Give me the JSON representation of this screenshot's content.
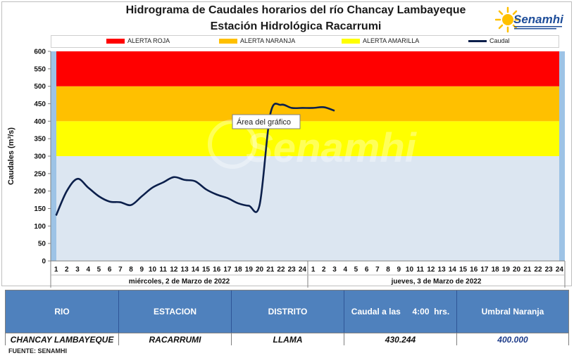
{
  "header": {
    "title_line1": "Hidrograma de Caudales horarios del río Chancay Lambayeque",
    "title_line2": "Estación Hidrológica Racarrumi",
    "logo_text": "Senamhi"
  },
  "legend": {
    "roja": "ALERTA ROJA",
    "naranja": "ALERTA NARANJA",
    "amarilla": "ALERTA AMARILLA",
    "caudal": "Caudal"
  },
  "colors": {
    "roja": "#ff0000",
    "naranja": "#ffc000",
    "amarilla": "#ffff00",
    "normal": "#dce6f1",
    "line": "#0b1f4b",
    "header_bg": "#4f81bd"
  },
  "tooltip": "Área del gráfico",
  "watermark": "Senamhi",
  "chart_data": {
    "type": "line",
    "ylabel": "Caudales  (m³/s)",
    "ylim": [
      0,
      600
    ],
    "yticks": [
      0,
      50,
      100,
      150,
      200,
      250,
      300,
      350,
      400,
      450,
      500,
      550,
      600
    ],
    "grid": false,
    "legend_position": "top",
    "x_hours": [
      "1",
      "2",
      "3",
      "4",
      "5",
      "6",
      "7",
      "8",
      "9",
      "10",
      "11",
      "12",
      "13",
      "14",
      "15",
      "16",
      "17",
      "18",
      "19",
      "20",
      "21",
      "22",
      "23",
      "24",
      "1",
      "2",
      "3",
      "4",
      "5",
      "6",
      "7",
      "8",
      "9",
      "10",
      "11",
      "12",
      "13",
      "14",
      "15",
      "16",
      "17",
      "18",
      "19",
      "20",
      "21",
      "22",
      "23",
      "24"
    ],
    "day_labels": [
      "miércoles, 2 de Marzo de 2022",
      "jueves, 3 de Marzo de 2022"
    ],
    "thresholds": [
      {
        "name": "ALERTA AMARILLA",
        "from": 300,
        "to": 400
      },
      {
        "name": "ALERTA NARANJA",
        "from": 400,
        "to": 500
      },
      {
        "name": "ALERTA ROJA",
        "from": 500,
        "to": 600
      }
    ],
    "series": [
      {
        "name": "Caudal",
        "values": [
          130,
          200,
          235,
          210,
          185,
          170,
          168,
          160,
          185,
          210,
          225,
          240,
          232,
          228,
          205,
          190,
          180,
          165,
          158,
          160,
          420,
          447,
          438,
          438,
          438,
          440,
          430
        ]
      }
    ]
  },
  "table": {
    "headers": {
      "rio": "RIO",
      "estacion": "ESTACION",
      "distrito": "DISTRITO",
      "caudal": "Caudal a las     4:00  hrs.",
      "umbral": "Umbral Naranja"
    },
    "row": {
      "rio": "CHANCAY LAMBAYEQUE",
      "estacion": "RACARRUMI",
      "distrito": "LLAMA",
      "caudal": "430.244",
      "umbral": "400.000"
    }
  },
  "source": "FUENTE:  SENAMHI"
}
